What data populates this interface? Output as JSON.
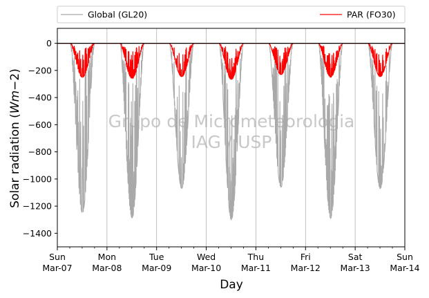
{
  "chart_data": {
    "type": "line",
    "xlabel": "Day",
    "ylabel": "Solar radiation (Wm−2)",
    "ylabel_plain": "Solar radiation (",
    "ylabel_math": "Wm",
    "ylabel_exp": "−2",
    "ylabel_close": ")",
    "ylim": [
      -1500,
      110
    ],
    "yticks": [
      0,
      -200,
      -400,
      -600,
      -800,
      -1000,
      -1200,
      -1400
    ],
    "xlim": [
      0,
      7
    ],
    "xticks": [
      {
        "x": 0,
        "day": "Sun",
        "date": "Mar-07"
      },
      {
        "x": 1,
        "day": "Mon",
        "date": "Mar-08"
      },
      {
        "x": 2,
        "day": "Tue",
        "date": "Mar-09"
      },
      {
        "x": 3,
        "day": "Wed",
        "date": "Mar-10"
      },
      {
        "x": 4,
        "day": "Thu",
        "date": "Mar-11"
      },
      {
        "x": 5,
        "day": "Fri",
        "date": "Mar-12"
      },
      {
        "x": 6,
        "day": "Sat",
        "date": "Mar-13"
      },
      {
        "x": 7,
        "day": "Sun",
        "date": "Mar-14"
      }
    ],
    "grid": "x",
    "legend_placement": "top, outside",
    "watermark": [
      "Grupo de Micrometeorologia",
      "IAG / USP"
    ],
    "series": [
      {
        "name": "Global (GL20)",
        "color": "#a9a9a9",
        "days": [
          {
            "peak": -1250,
            "irregular": 0.9
          },
          {
            "peak": -1290,
            "irregular": 0.75
          },
          {
            "peak": -1070,
            "irregular": 0.4
          },
          {
            "peak": -1300,
            "irregular": 0.6
          },
          {
            "peak": -1060,
            "irregular": 0.7
          },
          {
            "peak": -1290,
            "irregular": 0.7
          },
          {
            "peak": -1070,
            "irregular": 0.45
          }
        ]
      },
      {
        "name": "PAR (FO30)",
        "color": "#ff0000",
        "days": [
          {
            "peak": -250,
            "irregular": 0.9
          },
          {
            "peak": -260,
            "irregular": 0.75
          },
          {
            "peak": -245,
            "irregular": 0.4
          },
          {
            "peak": -265,
            "irregular": 0.6
          },
          {
            "peak": -230,
            "irregular": 0.7
          },
          {
            "peak": -250,
            "irregular": 0.7
          },
          {
            "peak": -245,
            "irregular": 0.45
          }
        ]
      }
    ]
  }
}
